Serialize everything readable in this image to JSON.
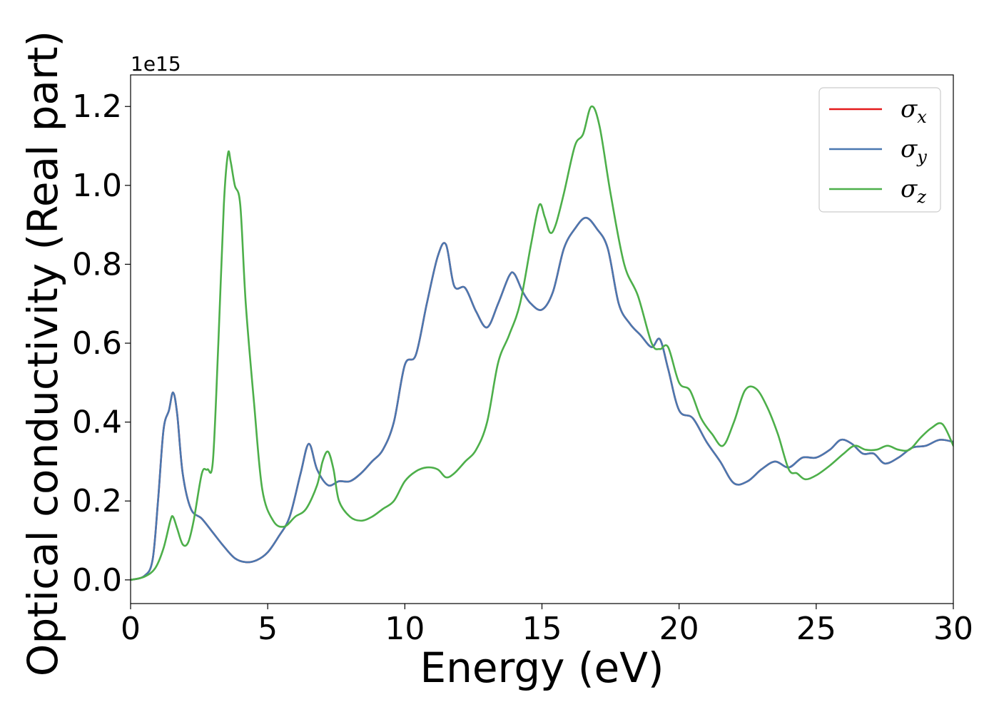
{
  "chart_data": {
    "type": "line",
    "xlabel": "Energy (eV)",
    "ylabel": "Optical conductivity (Real part)",
    "y_offset_text": "1e15",
    "xlim": [
      0,
      30
    ],
    "ylim": [
      -0.06,
      1.28
    ],
    "x_ticks": [
      0,
      5,
      10,
      15,
      20,
      25,
      30
    ],
    "x_tick_labels": [
      "0",
      "5",
      "10",
      "15",
      "20",
      "25",
      "30"
    ],
    "y_ticks": [
      0.0,
      0.2,
      0.4,
      0.6,
      0.8,
      1.0,
      1.2
    ],
    "y_tick_labels": [
      "0.0",
      "0.2",
      "0.4",
      "0.6",
      "0.8",
      "1.0",
      "1.2"
    ],
    "grid": false,
    "legend_position": "top-right",
    "series": [
      {
        "name": "σx",
        "legend_base": "σ",
        "legend_sub": "x",
        "color": "#e41a1c",
        "x": [
          0,
          0.5,
          0.8,
          1.0,
          1.2,
          1.4,
          1.55,
          1.7,
          1.9,
          2.2,
          2.6,
          3.0,
          3.4,
          3.8,
          4.2,
          4.6,
          5.0,
          5.4,
          5.8,
          6.2,
          6.5,
          6.8,
          7.2,
          7.6,
          8.0,
          8.4,
          8.8,
          9.2,
          9.6,
          10.0,
          10.4,
          10.8,
          11.2,
          11.5,
          11.8,
          12.2,
          12.6,
          13.0,
          13.4,
          13.8,
          14.0,
          14.3,
          14.6,
          15.0,
          15.4,
          15.8,
          16.2,
          16.6,
          17.0,
          17.4,
          17.8,
          18.2,
          18.6,
          19.0,
          19.3,
          19.6,
          20.0,
          20.5,
          21.0,
          21.5,
          22.0,
          22.5,
          23.0,
          23.5,
          24.0,
          24.5,
          25.0,
          25.5,
          25.9,
          26.3,
          26.7,
          27.1,
          27.5,
          28.0,
          28.5,
          29.0,
          29.5,
          30.0
        ],
        "y": [
          0.0,
          0.01,
          0.05,
          0.2,
          0.38,
          0.43,
          0.475,
          0.42,
          0.27,
          0.18,
          0.155,
          0.12,
          0.085,
          0.055,
          0.045,
          0.05,
          0.07,
          0.11,
          0.16,
          0.27,
          0.345,
          0.28,
          0.24,
          0.25,
          0.25,
          0.27,
          0.3,
          0.33,
          0.4,
          0.545,
          0.57,
          0.7,
          0.82,
          0.85,
          0.745,
          0.74,
          0.68,
          0.64,
          0.7,
          0.77,
          0.775,
          0.73,
          0.7,
          0.685,
          0.73,
          0.84,
          0.89,
          0.918,
          0.89,
          0.84,
          0.7,
          0.65,
          0.62,
          0.59,
          0.61,
          0.535,
          0.43,
          0.41,
          0.35,
          0.3,
          0.245,
          0.25,
          0.28,
          0.3,
          0.285,
          0.31,
          0.31,
          0.33,
          0.355,
          0.345,
          0.32,
          0.32,
          0.295,
          0.31,
          0.335,
          0.34,
          0.355,
          0.35
        ]
      },
      {
        "name": "σy",
        "legend_base": "σ",
        "legend_sub": "y",
        "color": "#4a78b0",
        "x": [
          0,
          0.5,
          0.8,
          1.0,
          1.2,
          1.4,
          1.55,
          1.7,
          1.9,
          2.2,
          2.6,
          3.0,
          3.4,
          3.8,
          4.2,
          4.6,
          5.0,
          5.4,
          5.8,
          6.2,
          6.5,
          6.8,
          7.2,
          7.6,
          8.0,
          8.4,
          8.8,
          9.2,
          9.6,
          10.0,
          10.4,
          10.8,
          11.2,
          11.5,
          11.8,
          12.2,
          12.6,
          13.0,
          13.4,
          13.8,
          14.0,
          14.3,
          14.6,
          15.0,
          15.4,
          15.8,
          16.2,
          16.6,
          17.0,
          17.4,
          17.8,
          18.2,
          18.6,
          19.0,
          19.3,
          19.6,
          20.0,
          20.5,
          21.0,
          21.5,
          22.0,
          22.5,
          23.0,
          23.5,
          24.0,
          24.5,
          25.0,
          25.5,
          25.9,
          26.3,
          26.7,
          27.1,
          27.5,
          28.0,
          28.5,
          29.0,
          29.5,
          30.0
        ],
        "y": [
          0.0,
          0.01,
          0.05,
          0.2,
          0.38,
          0.43,
          0.475,
          0.42,
          0.27,
          0.18,
          0.155,
          0.12,
          0.085,
          0.055,
          0.045,
          0.05,
          0.07,
          0.11,
          0.16,
          0.27,
          0.345,
          0.28,
          0.24,
          0.25,
          0.25,
          0.27,
          0.3,
          0.33,
          0.4,
          0.545,
          0.57,
          0.7,
          0.82,
          0.85,
          0.745,
          0.74,
          0.68,
          0.64,
          0.7,
          0.77,
          0.775,
          0.73,
          0.7,
          0.685,
          0.73,
          0.84,
          0.89,
          0.918,
          0.89,
          0.84,
          0.7,
          0.65,
          0.62,
          0.59,
          0.61,
          0.535,
          0.43,
          0.41,
          0.35,
          0.3,
          0.245,
          0.25,
          0.28,
          0.3,
          0.285,
          0.31,
          0.31,
          0.33,
          0.355,
          0.345,
          0.32,
          0.32,
          0.295,
          0.31,
          0.335,
          0.34,
          0.355,
          0.35
        ]
      },
      {
        "name": "σz",
        "legend_base": "σ",
        "legend_sub": "z",
        "color": "#4daf4a",
        "x": [
          0,
          0.5,
          0.9,
          1.2,
          1.45,
          1.55,
          1.7,
          1.9,
          2.1,
          2.3,
          2.6,
          2.8,
          3.0,
          3.2,
          3.4,
          3.55,
          3.65,
          3.8,
          4.0,
          4.2,
          4.5,
          4.8,
          5.2,
          5.6,
          6.0,
          6.4,
          6.8,
          7.0,
          7.2,
          7.4,
          7.6,
          8.0,
          8.4,
          8.8,
          9.2,
          9.6,
          10.0,
          10.4,
          10.8,
          11.2,
          11.5,
          11.8,
          12.2,
          12.6,
          13.0,
          13.4,
          13.8,
          14.2,
          14.6,
          14.9,
          15.1,
          15.3,
          15.5,
          15.8,
          16.2,
          16.5,
          16.8,
          17.1,
          17.5,
          18.0,
          18.5,
          19.0,
          19.3,
          19.6,
          20.0,
          20.4,
          20.8,
          21.2,
          21.6,
          22.0,
          22.4,
          22.8,
          23.2,
          23.6,
          24.0,
          24.3,
          24.6,
          25.0,
          25.5,
          26.0,
          26.4,
          26.8,
          27.2,
          27.6,
          28.0,
          28.4,
          28.8,
          29.2,
          29.6,
          30.0
        ],
        "y": [
          0.0,
          0.008,
          0.03,
          0.08,
          0.15,
          0.16,
          0.13,
          0.09,
          0.095,
          0.15,
          0.27,
          0.28,
          0.3,
          0.6,
          0.95,
          1.08,
          1.06,
          1.0,
          0.95,
          0.7,
          0.45,
          0.23,
          0.15,
          0.135,
          0.16,
          0.18,
          0.24,
          0.3,
          0.325,
          0.28,
          0.2,
          0.16,
          0.15,
          0.16,
          0.18,
          0.2,
          0.25,
          0.275,
          0.285,
          0.28,
          0.26,
          0.27,
          0.3,
          0.33,
          0.4,
          0.55,
          0.62,
          0.7,
          0.85,
          0.95,
          0.92,
          0.88,
          0.9,
          0.98,
          1.1,
          1.13,
          1.2,
          1.15,
          0.98,
          0.8,
          0.72,
          0.6,
          0.585,
          0.59,
          0.5,
          0.48,
          0.41,
          0.37,
          0.34,
          0.4,
          0.48,
          0.485,
          0.44,
          0.37,
          0.28,
          0.27,
          0.255,
          0.265,
          0.29,
          0.32,
          0.34,
          0.33,
          0.33,
          0.34,
          0.33,
          0.33,
          0.36,
          0.385,
          0.395,
          0.34
        ]
      }
    ]
  }
}
